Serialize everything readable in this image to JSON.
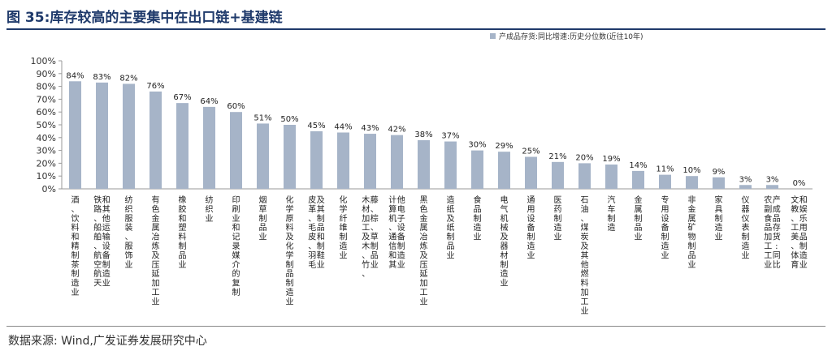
{
  "figure": {
    "title": "图 35:库存较高的主要集中在出口链+基建链",
    "source": "数据来源: Wind,广发证券发展研究中心"
  },
  "colors": {
    "bar": "#a6b4c8",
    "title": "#1f3a6b",
    "axis": "#999999"
  },
  "chart_data": {
    "type": "bar",
    "title": "",
    "xlabel": "",
    "ylabel": "",
    "ylim": [
      0,
      100
    ],
    "yticks": [
      "0%",
      "10%",
      "20%",
      "30%",
      "40%",
      "50%",
      "60%",
      "70%",
      "80%",
      "90%",
      "100%"
    ],
    "grid": false,
    "legend_position": "top-right",
    "series": [
      {
        "name": "产成品存货:同比增速:历史分位数(近往10年)",
        "values": [
          84,
          83,
          82,
          76,
          67,
          64,
          60,
          51,
          50,
          45,
          44,
          43,
          42,
          38,
          37,
          30,
          29,
          25,
          21,
          20,
          19,
          14,
          11,
          10,
          9,
          3,
          3,
          0
        ],
        "data_labels": [
          "84%",
          "83%",
          "82%",
          "76%",
          "67%",
          "64%",
          "60%",
          "51%",
          "50%",
          "45%",
          "44%",
          "43%",
          "42%",
          "38%",
          "37%",
          "30%",
          "29%",
          "25%",
          "21%",
          "20%",
          "19%",
          "14%",
          "11%",
          "10%",
          "9%",
          "3%",
          "3%",
          "0%"
        ]
      }
    ],
    "categories": [
      "酒、饮料和精制茶制造业",
      "铁路、船舶、航空航天和其他运输设备制造业",
      "纺织服装、服饰业",
      "有色金属冶炼及压延加工业",
      "橡胶和塑料制品业",
      "纺织业",
      "印刷业和记录媒介的复制",
      "烟草制品业",
      "化学原料及化学制品制造业",
      "皮革、毛皮、羽毛及其制品和制鞋业",
      "化学纤维制造业",
      "木材加工及木、竹、藤、棕、草制品业",
      "计算机、通信和其他电子设备制造业",
      "黑色金属冶炼及压延加工业",
      "造纸及纸制品业",
      "食品制造业",
      "电气机械及器材制造业",
      "通用设备制造业",
      "医药制造业",
      "石油、煤炭及其他燃料加工业",
      "汽车制造",
      "金属制品业",
      "专用设备制造业",
      "非金属矿物制品业",
      "家具制造业",
      "仪器仪表制造业",
      "农副食品加工工业产成品存货:同比",
      "文教、工美、体育和娱乐用品制造业"
    ]
  }
}
